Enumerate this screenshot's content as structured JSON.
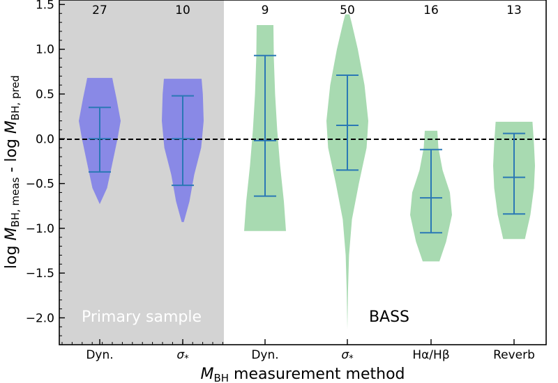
{
  "chart_data": {
    "type": "violin",
    "xlabel": "M_BH measurement method",
    "xlabel_parts": {
      "main": "M",
      "sub": "BH",
      "rest": " measurement method"
    },
    "ylabel": "log M_BH, meas - log M_BH, pred",
    "ylabel_parts": {
      "p1": "log ",
      "m1": "M",
      "s1": "BH, meas",
      "p2": " - log ",
      "m2": "M",
      "s2": "BH, pred"
    },
    "ylim": [
      -2.3,
      1.55
    ],
    "yticks": [
      1.5,
      1.0,
      0.5,
      0.0,
      -0.5,
      -1.0,
      -1.5,
      -2.0
    ],
    "ytick_labels": [
      "1.5",
      "1.0",
      "0.5",
      "0.0",
      "−0.5",
      "−1.0",
      "−1.5",
      "−2.0"
    ],
    "reference_line": {
      "y": 0.0,
      "style": "dashed"
    },
    "regions": [
      {
        "label": "Primary sample",
        "shaded": true,
        "shade_color": "#d3d3d3",
        "label_color": "#ffffff"
      },
      {
        "label": "BASS",
        "shaded": false,
        "shade_color": "#ffffff",
        "label_color": "#000000"
      }
    ],
    "colors": {
      "primary": "#8989e6",
      "bass": "#a8dab1",
      "whisker": "#2a78b5"
    },
    "categories": [
      "Dyn.",
      "σ*",
      "Dyn.",
      "σ*",
      "Hα/Hβ",
      "Reverb"
    ],
    "violins": [
      {
        "label": "Dyn.",
        "group": "primary",
        "count": "27",
        "min": -0.73,
        "max": 0.68,
        "q_low": -0.37,
        "median": 0.0,
        "q_high": 0.35,
        "profile": [
          [
            -0.73,
            0.0
          ],
          [
            -0.55,
            0.35
          ],
          [
            -0.3,
            0.58
          ],
          [
            0.0,
            0.85
          ],
          [
            0.2,
            1.0
          ],
          [
            0.45,
            0.8
          ],
          [
            0.62,
            0.65
          ],
          [
            0.68,
            0.6
          ]
        ]
      },
      {
        "label": "σ*",
        "group": "primary",
        "count": "10",
        "min": -0.93,
        "max": 0.67,
        "q_low": -0.52,
        "median": 0.0,
        "q_high": 0.48,
        "profile": [
          [
            -0.93,
            0.05
          ],
          [
            -0.7,
            0.32
          ],
          [
            -0.4,
            0.55
          ],
          [
            -0.1,
            0.88
          ],
          [
            0.2,
            1.0
          ],
          [
            0.5,
            0.96
          ],
          [
            0.67,
            0.9
          ]
        ]
      },
      {
        "label": "Dyn.",
        "group": "bass",
        "count": "9",
        "min": -1.03,
        "max": 1.27,
        "q_low": -0.64,
        "median": -0.02,
        "q_high": 0.93,
        "profile": [
          [
            -1.03,
            1.0
          ],
          [
            -0.7,
            0.9
          ],
          [
            -0.3,
            0.72
          ],
          [
            0.1,
            0.58
          ],
          [
            0.5,
            0.48
          ],
          [
            0.9,
            0.42
          ],
          [
            1.27,
            0.4
          ]
        ]
      },
      {
        "label": "σ*",
        "group": "bass",
        "count": "50",
        "min": -2.13,
        "max": 1.39,
        "q_low": -0.35,
        "median": 0.15,
        "q_high": 0.71,
        "profile": [
          [
            -2.13,
            0.0
          ],
          [
            -1.7,
            0.03
          ],
          [
            -1.3,
            0.08
          ],
          [
            -0.9,
            0.22
          ],
          [
            -0.5,
            0.55
          ],
          [
            -0.1,
            0.92
          ],
          [
            0.2,
            1.0
          ],
          [
            0.6,
            0.82
          ],
          [
            1.0,
            0.5
          ],
          [
            1.3,
            0.2
          ],
          [
            1.39,
            0.1
          ]
        ]
      },
      {
        "label": "Hα/Hβ",
        "group": "bass",
        "count": "16",
        "min": -1.37,
        "max": 0.09,
        "q_low": -1.05,
        "median": -0.66,
        "q_high": -0.12,
        "profile": [
          [
            -1.37,
            0.4
          ],
          [
            -1.15,
            0.72
          ],
          [
            -0.85,
            1.0
          ],
          [
            -0.6,
            0.9
          ],
          [
            -0.35,
            0.55
          ],
          [
            -0.1,
            0.35
          ],
          [
            0.09,
            0.3
          ]
        ]
      },
      {
        "label": "Reverb",
        "group": "bass",
        "count": "13",
        "min": -1.12,
        "max": 0.19,
        "q_low": -0.84,
        "median": -0.43,
        "q_high": 0.06,
        "profile": [
          [
            -1.12,
            0.52
          ],
          [
            -0.85,
            0.78
          ],
          [
            -0.55,
            0.95
          ],
          [
            -0.3,
            1.0
          ],
          [
            -0.05,
            0.95
          ],
          [
            0.19,
            0.88
          ]
        ]
      }
    ]
  }
}
